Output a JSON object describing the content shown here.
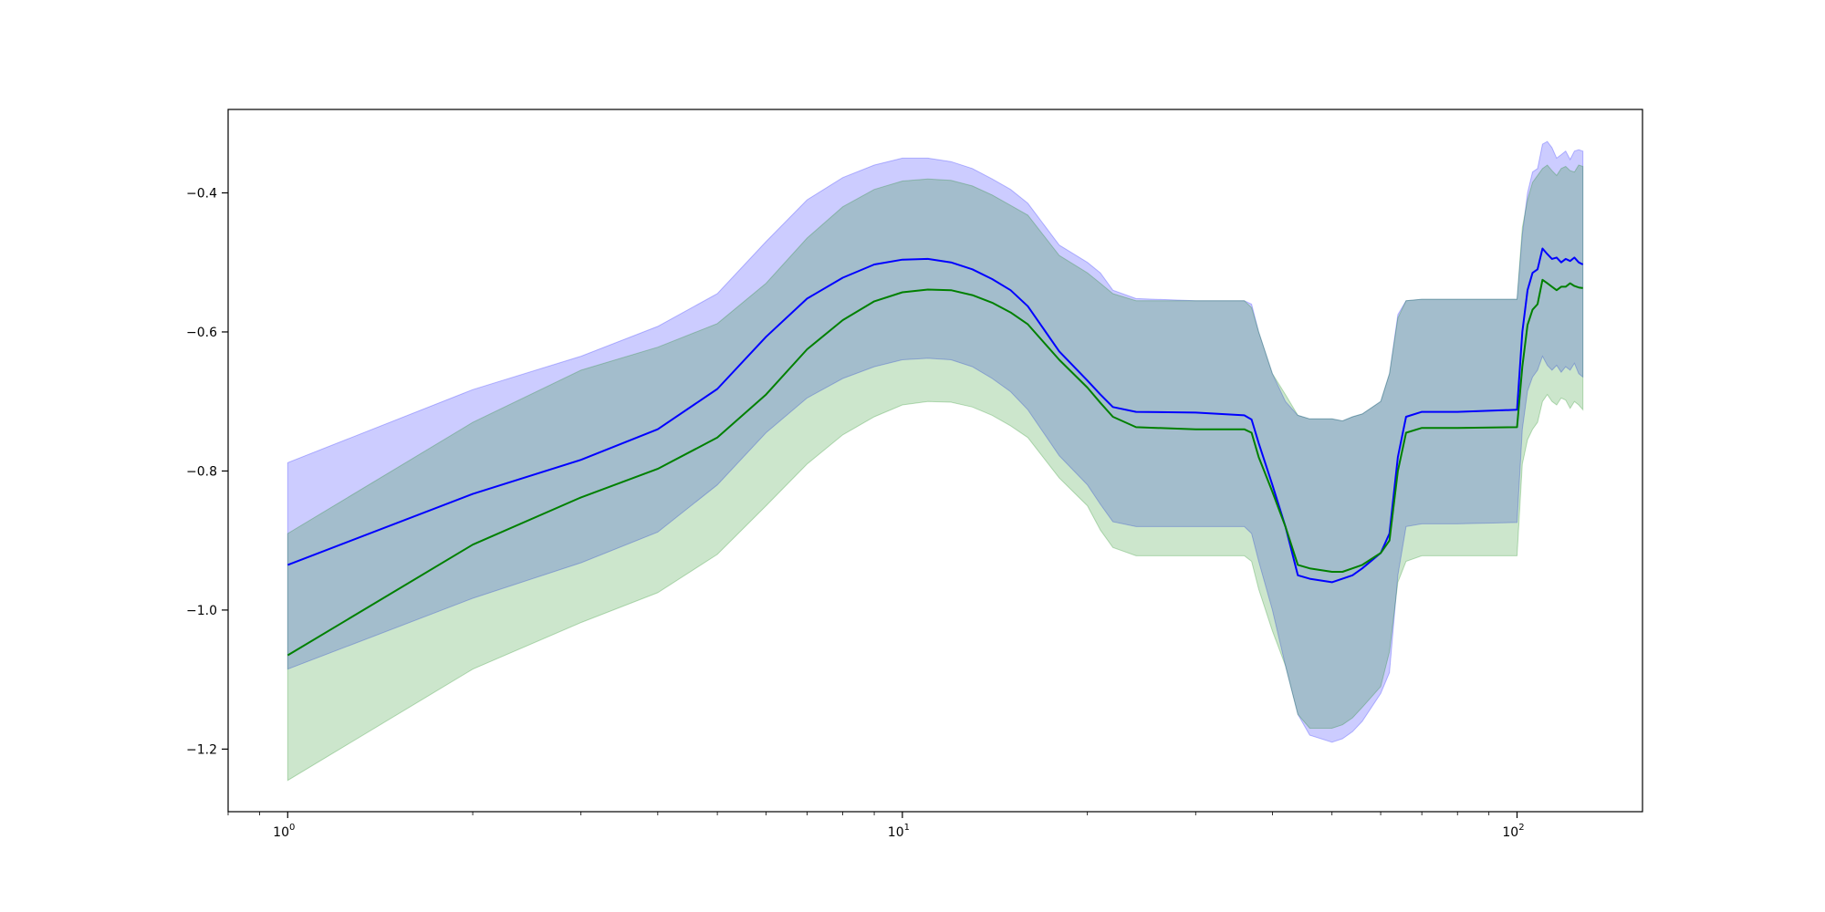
{
  "chart_data": {
    "type": "line",
    "title": "",
    "xlabel": "",
    "ylabel": "",
    "xscale": "log",
    "xlim": [
      0.8,
      160
    ],
    "ylim": [
      -1.29,
      -0.28
    ],
    "grid": false,
    "legend": "none",
    "x_ticks": [
      {
        "value": 1,
        "base": "10",
        "exp": "0"
      },
      {
        "value": 10,
        "base": "10",
        "exp": "1"
      },
      {
        "value": 100,
        "base": "10",
        "exp": "2"
      }
    ],
    "y_ticks": [
      {
        "value": -0.4,
        "label": "−0.4"
      },
      {
        "value": -0.6,
        "label": "−0.6"
      },
      {
        "value": -0.8,
        "label": "−0.8"
      },
      {
        "value": -1.0,
        "label": "−1.0"
      },
      {
        "value": -1.2,
        "label": "−1.2"
      }
    ],
    "series": [
      {
        "color": "#0000ff",
        "band_color": "#0000ff",
        "band_opacity": 0.2,
        "x": [
          1,
          2,
          3,
          4,
          5,
          6,
          7,
          8,
          9,
          10,
          11,
          12,
          13,
          14,
          15,
          16,
          18,
          20,
          21,
          22,
          24,
          30,
          36,
          37,
          38,
          40,
          42,
          44,
          46,
          50,
          52,
          54,
          56,
          60,
          62,
          64,
          66,
          70,
          80,
          100,
          102,
          104,
          106,
          108,
          110,
          112,
          114,
          116,
          118,
          120,
          122,
          124,
          126,
          128
        ],
        "y": [
          -0.935,
          -0.833,
          -0.784,
          -0.74,
          -0.682,
          -0.607,
          -0.552,
          -0.522,
          -0.503,
          -0.496,
          -0.495,
          -0.5,
          -0.51,
          -0.524,
          -0.54,
          -0.563,
          -0.628,
          -0.67,
          -0.69,
          -0.708,
          -0.715,
          -0.716,
          -0.72,
          -0.726,
          -0.76,
          -0.82,
          -0.88,
          -0.95,
          -0.955,
          -0.96,
          -0.955,
          -0.95,
          -0.94,
          -0.918,
          -0.89,
          -0.78,
          -0.722,
          -0.715,
          -0.715,
          -0.712,
          -0.6,
          -0.54,
          -0.515,
          -0.51,
          -0.48,
          -0.488,
          -0.495,
          -0.493,
          -0.5,
          -0.495,
          -0.498,
          -0.493,
          -0.5,
          -0.503
        ],
        "upper": [
          -0.788,
          -0.683,
          -0.635,
          -0.592,
          -0.545,
          -0.47,
          -0.41,
          -0.378,
          -0.36,
          -0.35,
          -0.35,
          -0.355,
          -0.365,
          -0.38,
          -0.395,
          -0.415,
          -0.475,
          -0.5,
          -0.515,
          -0.54,
          -0.552,
          -0.555,
          -0.555,
          -0.56,
          -0.6,
          -0.66,
          -0.7,
          -0.72,
          -0.725,
          -0.725,
          -0.728,
          -0.722,
          -0.718,
          -0.7,
          -0.66,
          -0.575,
          -0.555,
          -0.553,
          -0.553,
          -0.553,
          -0.46,
          -0.4,
          -0.37,
          -0.365,
          -0.33,
          -0.326,
          -0.335,
          -0.35,
          -0.345,
          -0.34,
          -0.352,
          -0.34,
          -0.338,
          -0.34
        ],
        "lower": [
          -1.085,
          -0.983,
          -0.932,
          -0.888,
          -0.82,
          -0.745,
          -0.695,
          -0.667,
          -0.65,
          -0.64,
          -0.638,
          -0.64,
          -0.65,
          -0.667,
          -0.686,
          -0.712,
          -0.778,
          -0.82,
          -0.848,
          -0.873,
          -0.88,
          -0.88,
          -0.88,
          -0.89,
          -0.93,
          -1.0,
          -1.08,
          -1.15,
          -1.18,
          -1.19,
          -1.185,
          -1.175,
          -1.16,
          -1.12,
          -1.09,
          -0.95,
          -0.88,
          -0.876,
          -0.876,
          -0.874,
          -0.74,
          -0.685,
          -0.665,
          -0.655,
          -0.635,
          -0.648,
          -0.655,
          -0.648,
          -0.658,
          -0.65,
          -0.655,
          -0.645,
          -0.66,
          -0.665
        ]
      },
      {
        "color": "#008000",
        "band_color": "#008000",
        "band_opacity": 0.2,
        "x": [
          1,
          2,
          3,
          4,
          5,
          6,
          7,
          8,
          9,
          10,
          11,
          12,
          13,
          14,
          15,
          16,
          18,
          20,
          21,
          22,
          24,
          30,
          36,
          37,
          38,
          40,
          42,
          44,
          46,
          50,
          52,
          54,
          56,
          60,
          62,
          64,
          66,
          70,
          80,
          100,
          102,
          104,
          106,
          108,
          110,
          112,
          114,
          116,
          118,
          120,
          122,
          124,
          126,
          128
        ],
        "y": [
          -1.065,
          -0.906,
          -0.838,
          -0.797,
          -0.752,
          -0.69,
          -0.625,
          -0.583,
          -0.556,
          -0.543,
          -0.539,
          -0.54,
          -0.547,
          -0.558,
          -0.572,
          -0.589,
          -0.64,
          -0.68,
          -0.702,
          -0.722,
          -0.737,
          -0.74,
          -0.74,
          -0.745,
          -0.78,
          -0.83,
          -0.88,
          -0.935,
          -0.94,
          -0.945,
          -0.945,
          -0.94,
          -0.935,
          -0.918,
          -0.9,
          -0.8,
          -0.745,
          -0.738,
          -0.738,
          -0.737,
          -0.65,
          -0.59,
          -0.568,
          -0.56,
          -0.525,
          -0.53,
          -0.535,
          -0.54,
          -0.535,
          -0.535,
          -0.53,
          -0.534,
          -0.536,
          -0.537
        ],
        "upper": [
          -0.89,
          -0.73,
          -0.655,
          -0.622,
          -0.588,
          -0.53,
          -0.465,
          -0.42,
          -0.395,
          -0.383,
          -0.38,
          -0.382,
          -0.39,
          -0.403,
          -0.418,
          -0.432,
          -0.49,
          -0.515,
          -0.53,
          -0.545,
          -0.555,
          -0.555,
          -0.555,
          -0.565,
          -0.6,
          -0.66,
          -0.69,
          -0.72,
          -0.725,
          -0.725,
          -0.728,
          -0.722,
          -0.718,
          -0.7,
          -0.66,
          -0.58,
          -0.555,
          -0.553,
          -0.553,
          -0.553,
          -0.45,
          -0.41,
          -0.385,
          -0.375,
          -0.365,
          -0.36,
          -0.368,
          -0.375,
          -0.365,
          -0.362,
          -0.368,
          -0.37,
          -0.36,
          -0.362
        ],
        "lower": [
          -1.245,
          -1.085,
          -1.018,
          -0.975,
          -0.92,
          -0.85,
          -0.79,
          -0.748,
          -0.722,
          -0.705,
          -0.7,
          -0.701,
          -0.708,
          -0.72,
          -0.735,
          -0.752,
          -0.81,
          -0.85,
          -0.885,
          -0.91,
          -0.922,
          -0.922,
          -0.922,
          -0.93,
          -0.97,
          -1.03,
          -1.08,
          -1.15,
          -1.17,
          -1.17,
          -1.165,
          -1.155,
          -1.14,
          -1.11,
          -1.06,
          -0.96,
          -0.93,
          -0.922,
          -0.922,
          -0.922,
          -0.79,
          -0.755,
          -0.74,
          -0.73,
          -0.7,
          -0.69,
          -0.7,
          -0.705,
          -0.695,
          -0.698,
          -0.71,
          -0.7,
          -0.705,
          -0.712
        ]
      }
    ]
  }
}
